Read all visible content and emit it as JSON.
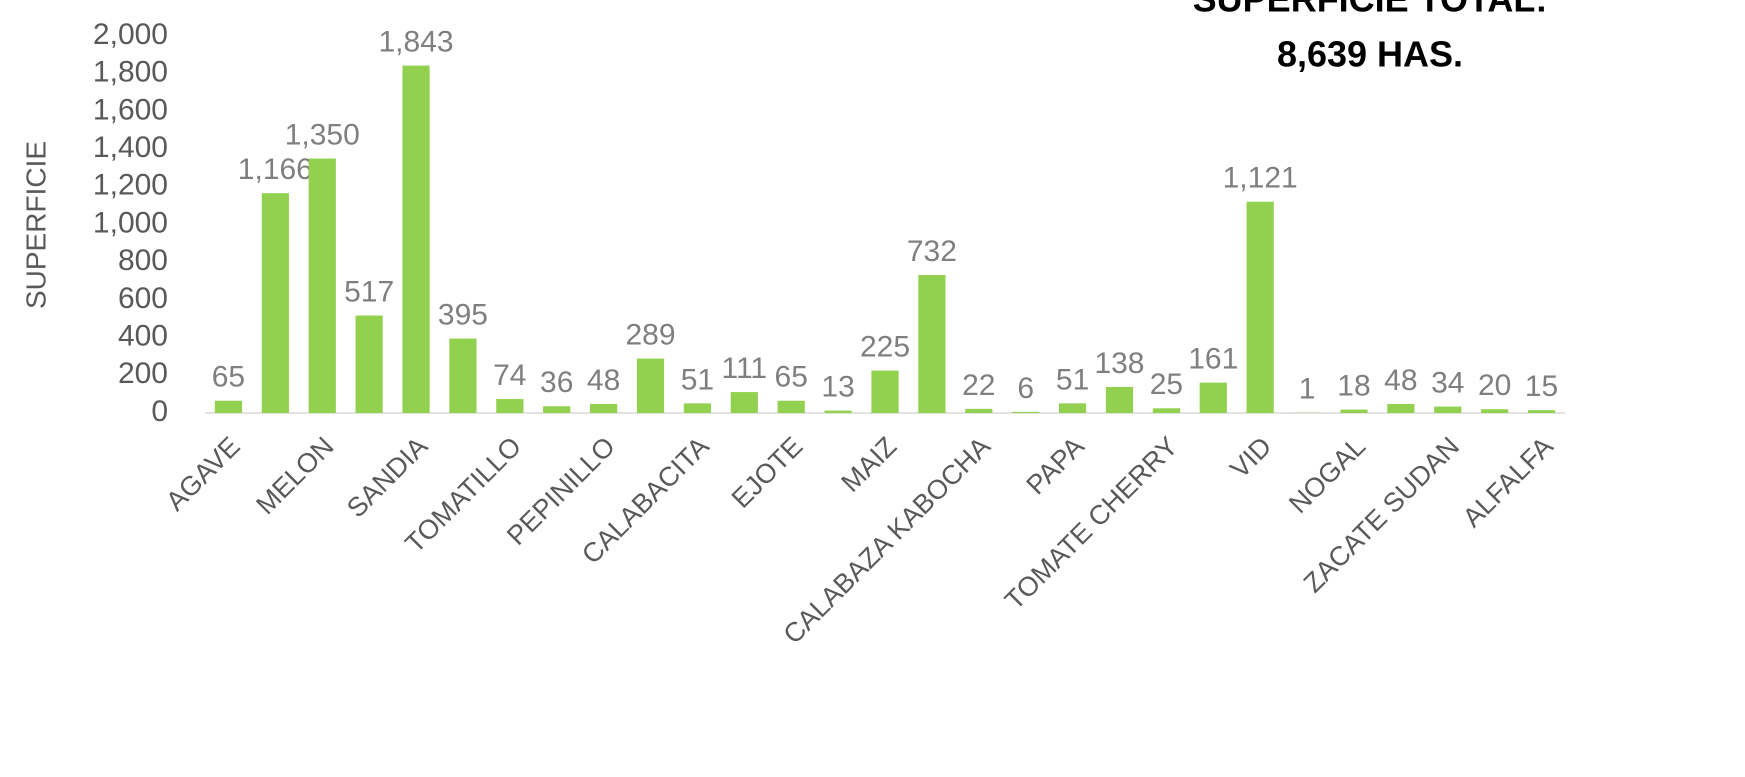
{
  "chart_data": {
    "type": "bar",
    "title": "SUPERFICIE TOTAL:",
    "subtitle": "8,639 HAS.",
    "y_label": "SUPERFICIE",
    "categories": [
      "AGAVE",
      null,
      "MELON",
      null,
      "SANDIA",
      null,
      "TOMATILLO",
      null,
      "PEPINILLO",
      null,
      "CALABACITA",
      null,
      "EJOTE",
      null,
      "MAIZ",
      null,
      "CALABAZA KABOCHA",
      null,
      "PAPA",
      null,
      "TOMATE CHERRY",
      null,
      "VID",
      null,
      "NOGAL",
      null,
      "ZACATE SUDAN",
      null,
      "ALFALFA"
    ],
    "values": [
      65,
      1166,
      1350,
      517,
      1843,
      395,
      74,
      36,
      48,
      289,
      51,
      111,
      65,
      13,
      225,
      732,
      22,
      6,
      51,
      138,
      25,
      161,
      1121,
      1,
      18,
      48,
      34,
      20,
      15
    ],
    "value_labels": [
      "65",
      "1,166",
      "1,350",
      "517",
      "1,843",
      "395",
      "74",
      "36",
      "48",
      "289",
      "51",
      "111",
      "65",
      "13",
      "225",
      "732",
      "22",
      "6",
      "51",
      "138",
      "25",
      "161",
      "1,121",
      "1",
      "18",
      "48",
      "34",
      "20",
      "15"
    ],
    "color": "#92d050",
    "ylim": [
      0,
      2000
    ],
    "yticks": [
      0,
      200,
      400,
      600,
      800,
      {
        "value": 1000,
        "label": "1,000"
      },
      {
        "value": 1200,
        "label": "1,200"
      },
      {
        "value": 1400,
        "label": "1,400"
      },
      {
        "value": 1600,
        "label": "1,600"
      },
      {
        "value": 1800,
        "label": "1,800"
      },
      {
        "value": 2000,
        "label": "2,000"
      }
    ],
    "grid": false
  }
}
